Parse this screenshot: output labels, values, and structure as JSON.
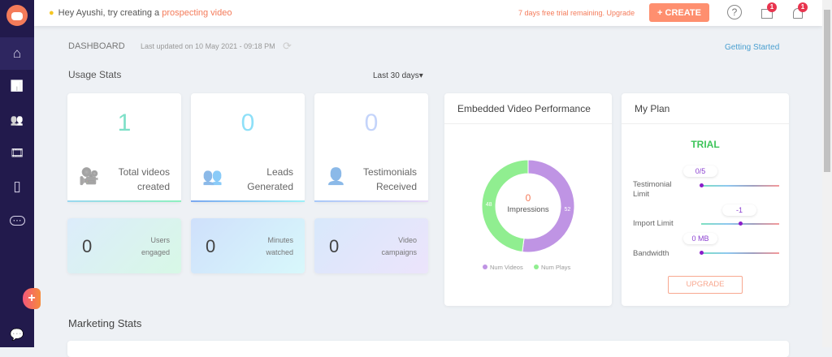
{
  "sidebar": {
    "items": [
      {
        "name": "home",
        "icon": "⌂"
      },
      {
        "name": "analytics",
        "icon": "📊"
      },
      {
        "name": "contacts",
        "icon": "👥"
      },
      {
        "name": "videos",
        "icon": "🎞"
      },
      {
        "name": "templates",
        "icon": "▯"
      },
      {
        "name": "more",
        "icon": "⋯"
      }
    ],
    "chat_icon": "💬",
    "add": "+"
  },
  "topbar": {
    "hint_prefix": "Hey Ayushi, try creating a ",
    "hint_link": "prospecting video",
    "trial": "7 days free trial remaining. Upgrade",
    "create": "+ CREATE",
    "help": "?",
    "gift_badge": "1",
    "bell_badge": "1"
  },
  "dashboard": {
    "title": "DASHBOARD",
    "updated": "Last updated on 10 May 2021 - 09:18 PM",
    "getting_started": "Getting Started",
    "usage_title": "Usage Stats",
    "range": "Last 30 days▾",
    "marketing_title": "Marketing Stats"
  },
  "stats": [
    {
      "value": "1",
      "line1": "Total videos",
      "line2": "created",
      "color": "#7ee0c8"
    },
    {
      "value": "0",
      "line1": "Leads",
      "line2": "Generated",
      "color": "#8ee0f8"
    },
    {
      "value": "0",
      "line1": "Testimonials",
      "line2": "Received",
      "color": "#c4d4fa"
    }
  ],
  "small_stats": [
    {
      "value": "0",
      "line1": "Users",
      "line2": "engaged"
    },
    {
      "value": "0",
      "line1": "Minutes",
      "line2": "watched"
    },
    {
      "value": "0",
      "line1": "Video",
      "line2": "campaigns"
    }
  ],
  "embedded": {
    "title": "Embedded Video Performance",
    "center_value": "0",
    "center_label": "Impressions"
  },
  "chart_data": {
    "type": "pie",
    "donut": true,
    "series": [
      {
        "name": "Num Videos",
        "value": 52,
        "color": "#bf94e4"
      },
      {
        "name": "Num Plays",
        "value": 48,
        "color": "#90ee90"
      }
    ],
    "legend": "bottom"
  },
  "plan": {
    "title": "My Plan",
    "status": "TRIAL",
    "testimonial_label": "Testimonial Limit",
    "testimonial_value": "0/5",
    "testimonial_level": 0,
    "import_label": "Import Limit",
    "import_value": "-1",
    "import_level": 0.5,
    "bandwidth_label": "Bandwidth",
    "bandwidth_value": "0 MB",
    "bandwidth_level": 0,
    "upgrade": "UPGRADE"
  }
}
